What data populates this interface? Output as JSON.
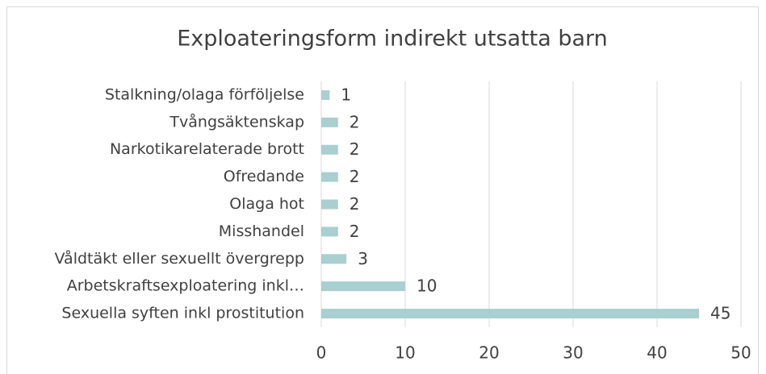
{
  "chart_data": {
    "type": "barh",
    "title": "Exploateringsform indirekt utsatta barn",
    "categories": [
      "Stalkning/olaga förföljelse",
      "Tvångsäktenskap",
      "Narkotikarelaterade brott",
      "Ofredande",
      "Olaga hot",
      "Misshandel",
      "Våldtäkt eller sexuellt övergrepp",
      "Arbetskraftsexploatering inkl…",
      "Sexuella syften inkl prostitution"
    ],
    "values": [
      1,
      2,
      2,
      2,
      2,
      2,
      3,
      10,
      45
    ],
    "color": "#a9cfd0",
    "xlim": [
      0,
      50
    ],
    "xticks": [
      0,
      10,
      20,
      30,
      40,
      50
    ],
    "grid": true
  }
}
